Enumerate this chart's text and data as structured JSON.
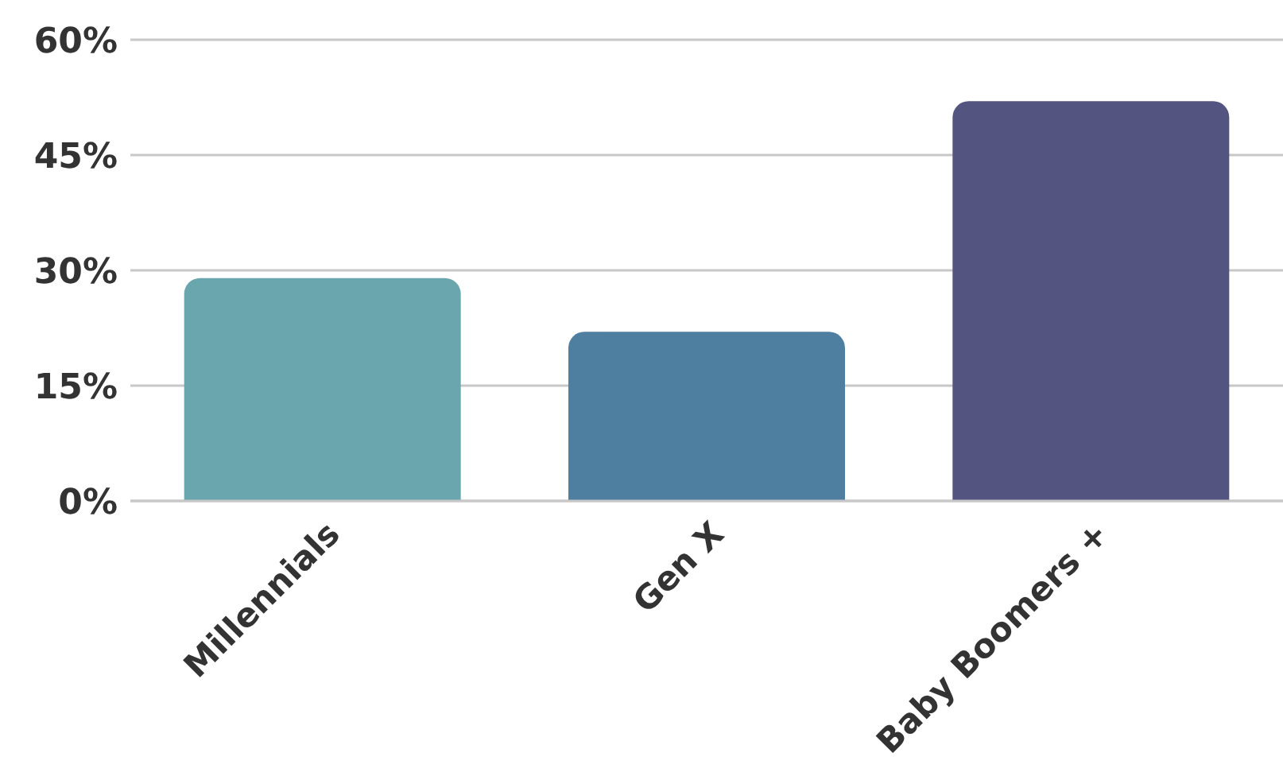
{
  "chart_data": {
    "type": "bar",
    "categories": [
      "Millennials",
      "Gen X",
      "Baby Boomers +"
    ],
    "values": [
      29,
      22,
      52
    ],
    "colors": [
      "#6aa6ae",
      "#4f7fa0",
      "#545480"
    ],
    "ylim": [
      0,
      60
    ],
    "yticks": [
      {
        "value": 0,
        "label": "0%"
      },
      {
        "value": 15,
        "label": "15%"
      },
      {
        "value": 30,
        "label": "30%"
      },
      {
        "value": 45,
        "label": "45%"
      },
      {
        "value": 60,
        "label": "60%"
      }
    ],
    "grid": "y"
  }
}
